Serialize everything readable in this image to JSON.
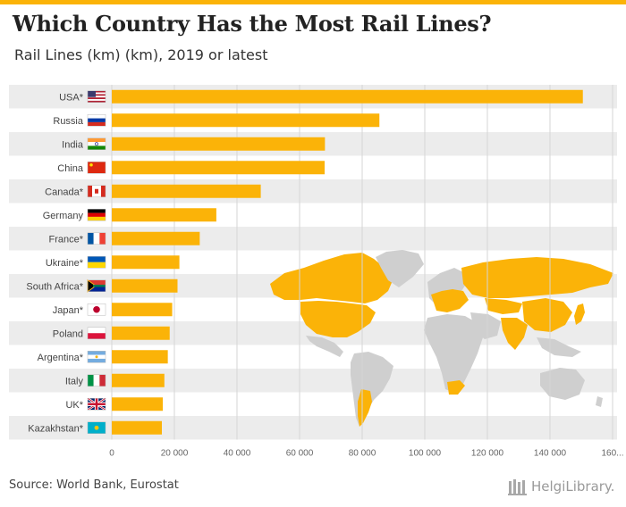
{
  "header": {
    "title": "Which Country Has the Most Rail Lines?",
    "subtitle": "Rail Lines (km) (km), 2019 or latest"
  },
  "footer": {
    "source": "Source: World Bank, Eurostat",
    "logo_text": "HelgiLibrary."
  },
  "colors": {
    "accent": "#fbb308",
    "bar": "#fbb308",
    "band": "#ececec",
    "map_land": "#cfcfcf",
    "map_highlight": "#fbb308"
  },
  "chart_data": {
    "type": "bar",
    "orientation": "horizontal",
    "title": "Which Country Has the Most Rail Lines?",
    "subtitle": "Rail Lines (km) (km), 2019 or latest",
    "categories": [
      "USA*",
      "Russia",
      "India",
      "China",
      "Canada*",
      "Germany",
      "France*",
      "Ukraine*",
      "South Africa*",
      "Japan*",
      "Poland",
      "Argentina*",
      "Italy",
      "UK*",
      "Kazakhstan*"
    ],
    "values": [
      150500,
      85500,
      68100,
      68000,
      47600,
      33400,
      28100,
      21600,
      21000,
      19300,
      18500,
      17900,
      16800,
      16300,
      16000
    ],
    "flags": [
      "usa-flag",
      "russia-flag",
      "india-flag",
      "china-flag",
      "canada-flag",
      "germany-flag",
      "france-flag",
      "ukraine-flag",
      "south-africa-flag",
      "japan-flag",
      "poland-flag",
      "argentina-flag",
      "italy-flag",
      "uk-flag",
      "kazakhstan-flag"
    ],
    "x_ticks": [
      "0",
      "20 000",
      "40 000",
      "60 000",
      "80 000",
      "100 000",
      "120 000",
      "140 000",
      "160..."
    ],
    "xlim": [
      0,
      160000
    ],
    "xlabel": "",
    "ylabel": "",
    "grid": true,
    "background": "world-map"
  }
}
